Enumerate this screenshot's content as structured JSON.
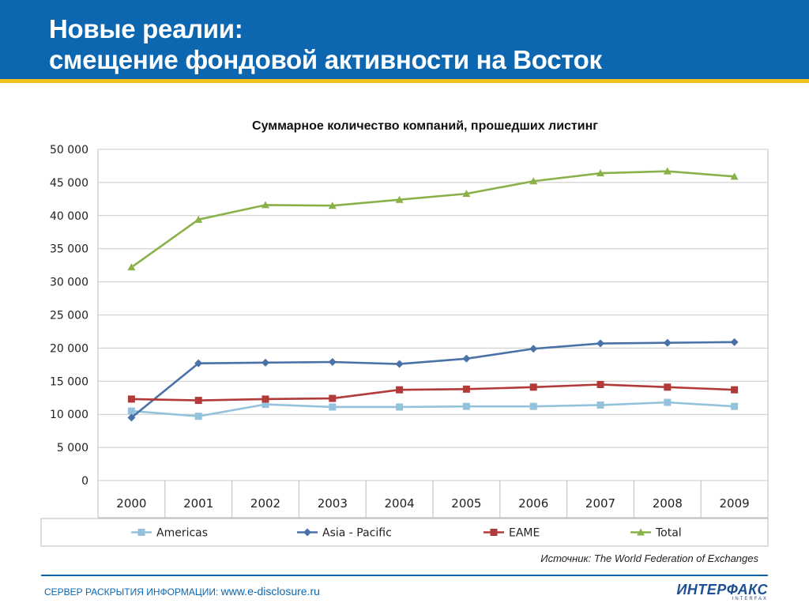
{
  "header": {
    "title_line1": "Новые реалии:",
    "title_line2": "смещение фондовой активности на Восток"
  },
  "colors": {
    "header_bg": "#0c67b0",
    "header_rule": "#f4c01e",
    "americas": "#93c3dc",
    "asia_pacific": "#4a71a8",
    "eame": "#b23a38",
    "total": "#8ab04a"
  },
  "chart_data": {
    "type": "line",
    "title": "Суммарное количество компаний, прошедших листинг",
    "xlabel": "",
    "ylabel": "",
    "x": [
      "2000",
      "2001",
      "2002",
      "2003",
      "2004",
      "2005",
      "2006",
      "2007",
      "2008",
      "2009"
    ],
    "ylim": [
      0,
      50000
    ],
    "yticks": [
      0,
      5000,
      10000,
      15000,
      20000,
      25000,
      30000,
      35000,
      40000,
      45000,
      50000
    ],
    "ytick_labels": [
      "0",
      "5 000",
      "10 000",
      "15 000",
      "20 000",
      "25 000",
      "30 000",
      "35 000",
      "40 000",
      "45 000",
      "50 000"
    ],
    "grid": true,
    "legend_position": "bottom",
    "series": [
      {
        "name": "Americas",
        "marker": "square",
        "color": "#93c3dc",
        "values": [
          10500,
          9700,
          11500,
          11100,
          11100,
          11200,
          11200,
          11400,
          11800,
          11200
        ]
      },
      {
        "name": "Asia - Pacific",
        "marker": "diamond",
        "color": "#4a71a8",
        "values": [
          9500,
          17700,
          17800,
          17900,
          17600,
          18400,
          19900,
          20700,
          20800,
          20900
        ]
      },
      {
        "name": "EAME",
        "marker": "square",
        "color": "#b23a38",
        "values": [
          12300,
          12100,
          12300,
          12400,
          13700,
          13800,
          14100,
          14500,
          14100,
          13700
        ]
      },
      {
        "name": "Total",
        "marker": "triangle",
        "color": "#8ab04a",
        "values": [
          32200,
          39400,
          41600,
          41500,
          42400,
          43300,
          45200,
          46400,
          46700,
          45900
        ]
      }
    ]
  },
  "source_text": "Источник: The World Federation of Exchanges",
  "footer": {
    "label": "СЕРВЕР РАСКРЫТИЯ ИНФОРМАЦИИ:",
    "url": "www.e-disclosure.ru"
  },
  "logo": {
    "main": "ИНТЕРФАКС",
    "sub": "INTERFAX"
  }
}
